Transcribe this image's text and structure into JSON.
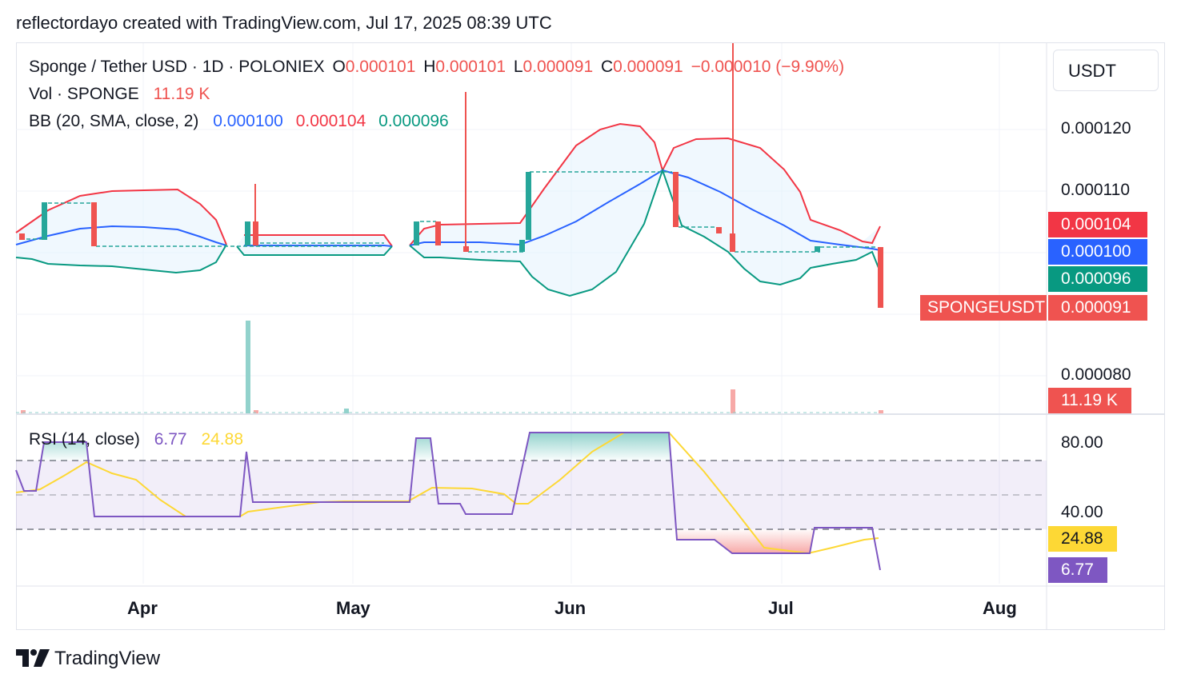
{
  "header": {
    "text": "reflectordayo created with TradingView.com, Jul 17, 2025 08:39 UTC"
  },
  "legend": {
    "symbol": "Sponge / Tether USD · 1D · POLONIEX",
    "o_label": "O",
    "o_value": "0.000101",
    "h_label": "H",
    "h_value": "0.000101",
    "l_label": "L",
    "l_value": "0.000091",
    "c_label": "C",
    "c_value": "0.000091",
    "change": "−0.000010 (−9.90%)",
    "vol_label": "Vol · SPONGE",
    "vol_value": "11.19 K",
    "bb_label": "BB (20, SMA, close, 2)",
    "bb_basis": "0.000100",
    "bb_upper": "0.000104",
    "bb_lower": "0.000096",
    "rsi_label": "RSI (14, close)",
    "rsi_value": "6.77",
    "rsi_ma": "24.88"
  },
  "price_axis": {
    "unit": "USDT",
    "ticks": [
      "0.000120",
      "0.000110",
      "0.000080"
    ],
    "labels": {
      "upper": "0.000104",
      "basis": "0.000100",
      "lower": "0.000096",
      "symbol": "SPONGEUSDT",
      "last": "0.000091",
      "volume": "11.19 K"
    }
  },
  "rsi_axis": {
    "ticks": [
      "80.00",
      "40.00"
    ],
    "labels": {
      "ma": "24.88",
      "rsi": "6.77"
    }
  },
  "time_axis": {
    "months": [
      "Apr",
      "May",
      "Jun",
      "Jul",
      "Aug"
    ]
  },
  "footer": {
    "brand": "TradingView"
  },
  "colors": {
    "up": "#26a69a",
    "down": "#ef5350",
    "basis": "#2962ff",
    "upper": "#f23645",
    "lower": "#089981",
    "rsi": "#7e57c2",
    "rsi_ma": "#fdd835",
    "band_fill": "#e3f2fd"
  },
  "chart_data": {
    "type": "candlestick",
    "symbol": "SPONGEUSDT",
    "x_range": [
      "2025-03-14",
      "2025-07-17"
    ],
    "y_range": [
      7.5e-05,
      0.000125
    ],
    "last_bar": {
      "date": "2025-07-17",
      "open": 0.000101,
      "high": 0.000101,
      "low": 9.1e-05,
      "close": 9.1e-05,
      "volume": 11190
    },
    "candles": [
      {
        "date": "2025-03-15",
        "open": 0.000102,
        "close": 0.000101
      },
      {
        "date": "2025-03-19",
        "open": 0.000102,
        "close": 0.000108
      },
      {
        "date": "2025-03-26",
        "open": 0.000108,
        "close": 0.000101
      },
      {
        "date": "2025-04-19",
        "open": 0.000101,
        "close": 0.000104
      },
      {
        "date": "2025-04-20",
        "open": 0.000104,
        "close": 0.000101,
        "high": 0.000111
      },
      {
        "date": "2025-05-10",
        "open": 0.000101,
        "close": 0.000104
      },
      {
        "date": "2025-05-13",
        "open": 0.000104,
        "close": 0.000101
      },
      {
        "date": "2025-05-17",
        "open": 0.000101,
        "close": 0.0001,
        "high": 0.000126
      },
      {
        "date": "2025-05-24",
        "open": 0.0001,
        "close": 0.000102
      },
      {
        "date": "2025-05-25",
        "open": 0.000104,
        "close": 0.000113
      },
      {
        "date": "2025-06-14",
        "open": 0.000113,
        "close": 0.000104
      },
      {
        "date": "2025-06-20",
        "open": 0.000104,
        "close": 0.000103
      },
      {
        "date": "2025-06-22",
        "open": 0.000103,
        "close": 0.0001,
        "high": 0.000134
      },
      {
        "date": "2025-07-05",
        "open": 0.0001,
        "close": 0.000101
      },
      {
        "date": "2025-07-17",
        "open": 0.000101,
        "close": 9.1e-05
      }
    ],
    "rsi": {
      "last": 6.77,
      "ma_last": 24.88,
      "overbought": 70,
      "oversold": 30,
      "ticks": [
        80,
        40
      ]
    }
  }
}
